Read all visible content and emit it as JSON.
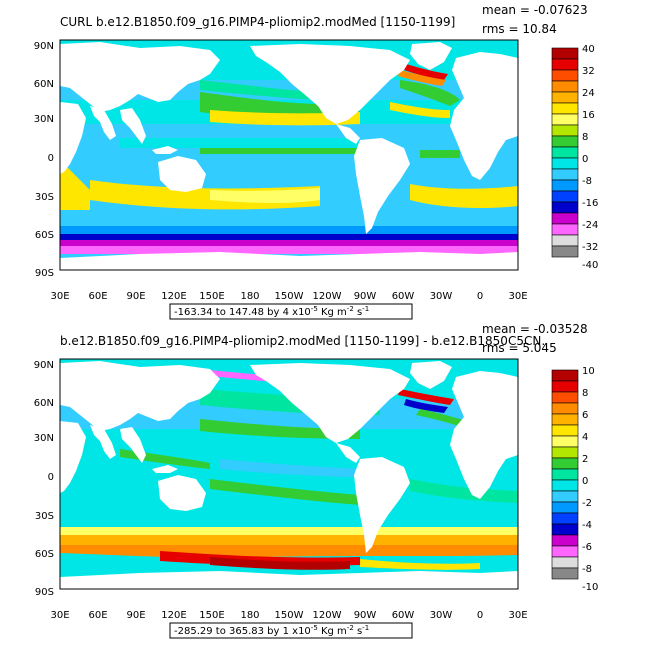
{
  "panels": [
    {
      "title": "CURL  b.e12.B1850.f09_g16.PIMP4-pliomip2.modMed  [1150-1199]",
      "stats_mean": "mean = -0.07623",
      "stats_rms": "rms = 10.84",
      "range_text": "-163.34 to 147.48 by 4 x10",
      "range_exp": "-5",
      "range_units": " Kg m",
      "range_units_exp": "-2",
      "range_units_tail": " s",
      "range_units_tail_exp": "-1",
      "colorbar_labels": [
        "40",
        "32",
        "24",
        "16",
        "8",
        "0",
        "-8",
        "-16",
        "-24",
        "-32",
        "-40"
      ]
    },
    {
      "title": "b.e12.B1850.f09_g16.PIMP4-pliomip2.modMed  [1150-1199] - b.e12.B1850C5CN.",
      "stats_mean": "mean = -0.03528",
      "stats_rms": "rms = 5.045",
      "range_text": "-285.29 to 365.83 by 1 x10",
      "range_exp": "-5",
      "range_units": " Kg m",
      "range_units_exp": "-2",
      "range_units_tail": " s",
      "range_units_tail_exp": "-1",
      "colorbar_labels": [
        "10",
        "8",
        "6",
        "4",
        "2",
        "0",
        "-2",
        "-4",
        "-6",
        "-8",
        "-10"
      ]
    }
  ],
  "lat_labels": [
    "90N",
    "60N",
    "30N",
    "0",
    "30S",
    "60S",
    "90S"
  ],
  "lon_labels": [
    "30E",
    "60E",
    "90E",
    "120E",
    "150E",
    "180",
    "150W",
    "120W",
    "90W",
    "60W",
    "30W",
    "0",
    "30E"
  ],
  "colorbar_colors": [
    "#b30000",
    "#e60000",
    "#ff4d00",
    "#ff8c00",
    "#ffb300",
    "#ffe600",
    "#ffff66",
    "#b3e600",
    "#33cc33",
    "#00e6a0",
    "#00e6e6",
    "#33ccff",
    "#0099ff",
    "#0040ff",
    "#0000cc",
    "#cc00cc",
    "#ff66ff",
    "#dddddd",
    "#888888"
  ],
  "ocean_colors": {
    "base": "#33ccff",
    "cyan": "#00e6e6",
    "teal": "#00e6a0",
    "green": "#33cc33",
    "yellow": "#ffff66",
    "yellow2": "#ffe600",
    "orange": "#ff8c00",
    "red": "#e60000",
    "darkred": "#b30000",
    "blue": "#0099ff",
    "navy": "#0000cc",
    "magenta": "#cc00cc"
  }
}
